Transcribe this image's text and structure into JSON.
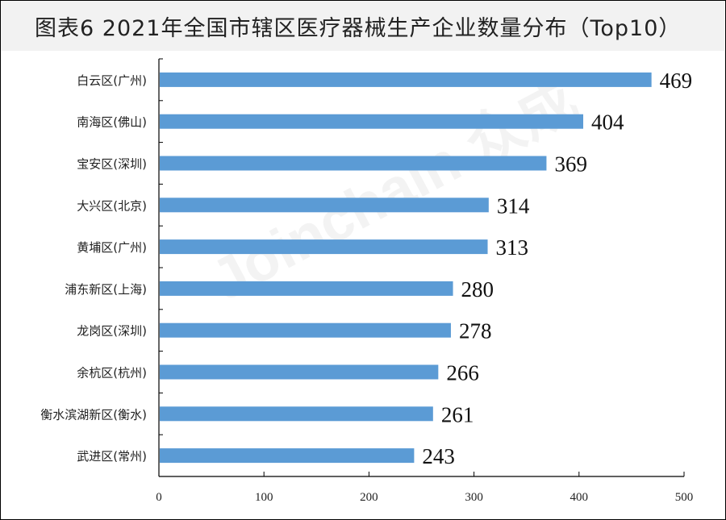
{
  "title": "图表6  2021年全国市辖区医疗器械生产企业数量分布（Top10）",
  "watermark": "Joinchain 众成",
  "chart_data": {
    "type": "bar",
    "orientation": "horizontal",
    "title": "图表6  2021年全国市辖区医疗器械生产企业数量分布（Top10）",
    "categories": [
      "白云区(广州)",
      "南海区(佛山)",
      "宝安区(深圳)",
      "大兴区(北京)",
      "黄埔区(广州)",
      "浦东新区(上海)",
      "龙岗区(深圳)",
      "余杭区(杭州)",
      "衡水滨湖新区(衡水)",
      "武进区(常州)"
    ],
    "values": [
      469,
      404,
      369,
      314,
      313,
      280,
      278,
      266,
      261,
      243
    ],
    "xlim": [
      0,
      500
    ],
    "xticks": [
      0,
      100,
      200,
      300,
      400,
      500
    ],
    "xlabel": "",
    "ylabel": "",
    "grid": false,
    "data_labels": true,
    "bar_color": "#5b9bd5"
  }
}
